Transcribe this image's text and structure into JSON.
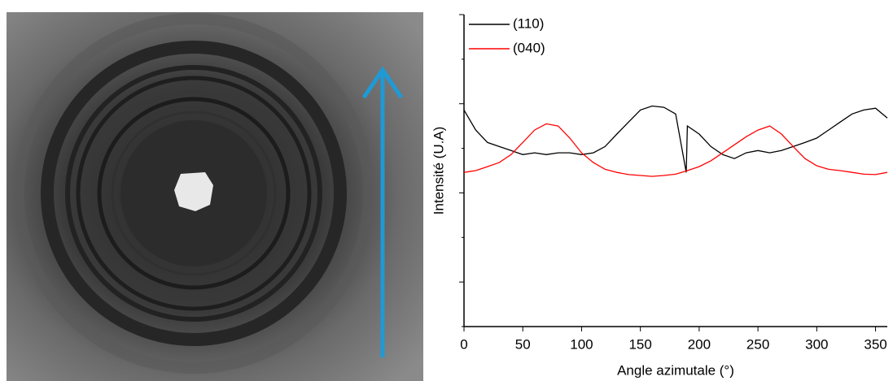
{
  "chart_data": {
    "type": "line",
    "x_label": "Angle azimutale (°)",
    "y_label": "Intensité (U.A)",
    "xlim": [
      0,
      360
    ],
    "xticks": [
      0,
      50,
      100,
      150,
      200,
      250,
      300,
      350
    ],
    "ylim": [
      0,
      7
    ],
    "yticks": [
      0,
      1,
      2,
      3,
      4,
      5,
      6,
      7
    ],
    "legend": "top-left",
    "x": [
      0,
      10,
      20,
      30,
      40,
      50,
      60,
      70,
      80,
      90,
      100,
      110,
      120,
      130,
      140,
      150,
      160,
      170,
      180,
      189,
      190,
      200,
      210,
      220,
      230,
      240,
      250,
      260,
      270,
      280,
      290,
      300,
      310,
      320,
      330,
      340,
      350,
      360
    ],
    "series": [
      {
        "name": "(110)",
        "color": "#000000",
        "values": [
          4.86,
          4.41,
          4.13,
          4.04,
          3.95,
          3.86,
          3.9,
          3.86,
          3.9,
          3.9,
          3.86,
          3.9,
          4.04,
          4.32,
          4.59,
          4.86,
          4.95,
          4.92,
          4.77,
          3.46,
          4.5,
          4.32,
          4.04,
          3.86,
          3.77,
          3.9,
          3.95,
          3.9,
          3.95,
          4.04,
          4.13,
          4.23,
          4.41,
          4.59,
          4.77,
          4.86,
          4.9,
          4.68
        ]
      },
      {
        "name": "(040)",
        "color": "#ff0000",
        "values": [
          3.46,
          3.5,
          3.59,
          3.68,
          3.86,
          4.13,
          4.41,
          4.55,
          4.5,
          4.23,
          3.9,
          3.68,
          3.53,
          3.46,
          3.41,
          3.39,
          3.37,
          3.39,
          3.42,
          3.49,
          3.5,
          3.59,
          3.72,
          3.9,
          4.08,
          4.26,
          4.41,
          4.5,
          4.32,
          4.04,
          3.77,
          3.61,
          3.53,
          3.5,
          3.46,
          3.42,
          3.41,
          3.46
        ]
      }
    ]
  }
}
